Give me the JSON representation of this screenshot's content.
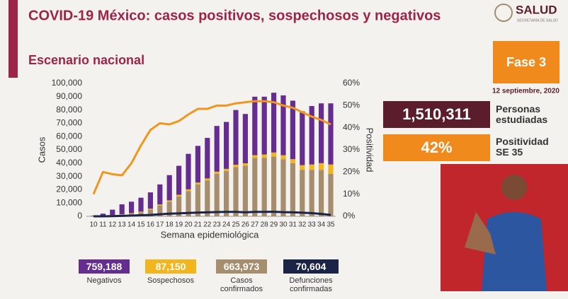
{
  "header": {
    "title": "COVID-19 México: casos positivos, sospechosos y negativos",
    "subtitle": "Escenario nacional",
    "brand": "SALUD",
    "brand_sub": "SECRETARÍA DE SALUD"
  },
  "side": {
    "phase": "Fase 3",
    "date": "12 septiembre, 2020",
    "studied": "1,510,311",
    "studied_label": "Personas estudiadas",
    "positivity": "42%",
    "positivity_label": "Positividad SE 35"
  },
  "summary_values": [
    "663,973",
    "87,150",
    "759,188",
    "70,604"
  ],
  "chart_data": {
    "type": "bar",
    "xlabel": "Semana epidemiológica",
    "ylabel": "Casos",
    "y2label": "Positividad",
    "categories": [
      "10",
      "11",
      "12",
      "13",
      "14",
      "15",
      "16",
      "17",
      "18",
      "19",
      "20",
      "21",
      "22",
      "23",
      "24",
      "25",
      "26",
      "27",
      "28",
      "29",
      "30",
      "31",
      "32",
      "33",
      "34",
      "35"
    ],
    "ylim": [
      0,
      100000
    ],
    "yticks": [
      0,
      {
        "value": 10000,
        "label": "10,000"
      },
      {
        "value": 20000,
        "label": "20,000"
      },
      {
        "value": 30000,
        "label": "30,000"
      },
      {
        "value": 40000,
        "label": "40,000"
      },
      {
        "value": 50000,
        "label": "50,000"
      },
      {
        "value": 60000,
        "label": "60,000"
      },
      {
        "value": 70000,
        "label": "70,000"
      },
      {
        "value": 80000,
        "label": "80,000"
      },
      {
        "value": 90000,
        "label": "90,000"
      },
      {
        "value": 100000,
        "label": "100,000"
      }
    ],
    "y2lim": [
      0,
      60
    ],
    "y2ticks": [
      {
        "value": 0,
        "label": "0%"
      },
      {
        "value": 10,
        "label": "10%"
      },
      {
        "value": 20,
        "label": "20%"
      },
      {
        "value": 30,
        "label": "30%"
      },
      {
        "value": 40,
        "label": "40%"
      },
      {
        "value": 50,
        "label": "50%"
      },
      {
        "value": 60,
        "label": "60%"
      }
    ],
    "grid": false,
    "series": [
      {
        "name": "Casos confirmados",
        "type": "bar",
        "color": "#a58d6d",
        "values": [
          100,
          300,
          700,
          1200,
          2000,
          3000,
          5000,
          8000,
          11000,
          15000,
          19000,
          24000,
          27000,
          32000,
          34000,
          37000,
          38000,
          44000,
          44000,
          45000,
          43000,
          40000,
          35000,
          35000,
          35000,
          32000
        ]
      },
      {
        "name": "Sospechosos",
        "type": "bar",
        "color": "#f2b51d",
        "values": [
          50,
          100,
          200,
          300,
          400,
          500,
          700,
          900,
          1000,
          1200,
          1300,
          1400,
          1500,
          1600,
          1700,
          1800,
          1900,
          2000,
          2500,
          3000,
          3000,
          3000,
          3500,
          4000,
          5000,
          7000
        ]
      },
      {
        "name": "Negativos",
        "type": "bar",
        "color": "#652d90",
        "values": [
          350,
          1600,
          4100,
          7500,
          8600,
          10500,
          12300,
          15100,
          19000,
          21800,
          26700,
          27600,
          30500,
          34400,
          35300,
          41200,
          37100,
          44000,
          43500,
          45000,
          45000,
          44000,
          40500,
          44000,
          45000,
          46000
        ]
      },
      {
        "name": "Defunciones confirmadas",
        "type": "line",
        "color": "#1b2447",
        "values": [
          0,
          20,
          100,
          300,
          500,
          800,
          1000,
          1500,
          2000,
          2200,
          2500,
          2800,
          3000,
          3200,
          3300,
          3300,
          3000,
          3300,
          3300,
          3400,
          3100,
          3000,
          2700,
          2400,
          1800,
          1000
        ]
      },
      {
        "type": "line",
        "axis": "y2",
        "color": "#f0961e",
        "values": [
          10,
          20,
          19,
          18.5,
          24,
          32,
          39,
          42,
          41.5,
          43,
          46,
          48.5,
          48.5,
          50,
          50,
          51,
          51.5,
          52,
          52,
          51.5,
          50,
          49,
          47,
          45,
          43.5,
          41.5
        ]
      }
    ]
  }
}
